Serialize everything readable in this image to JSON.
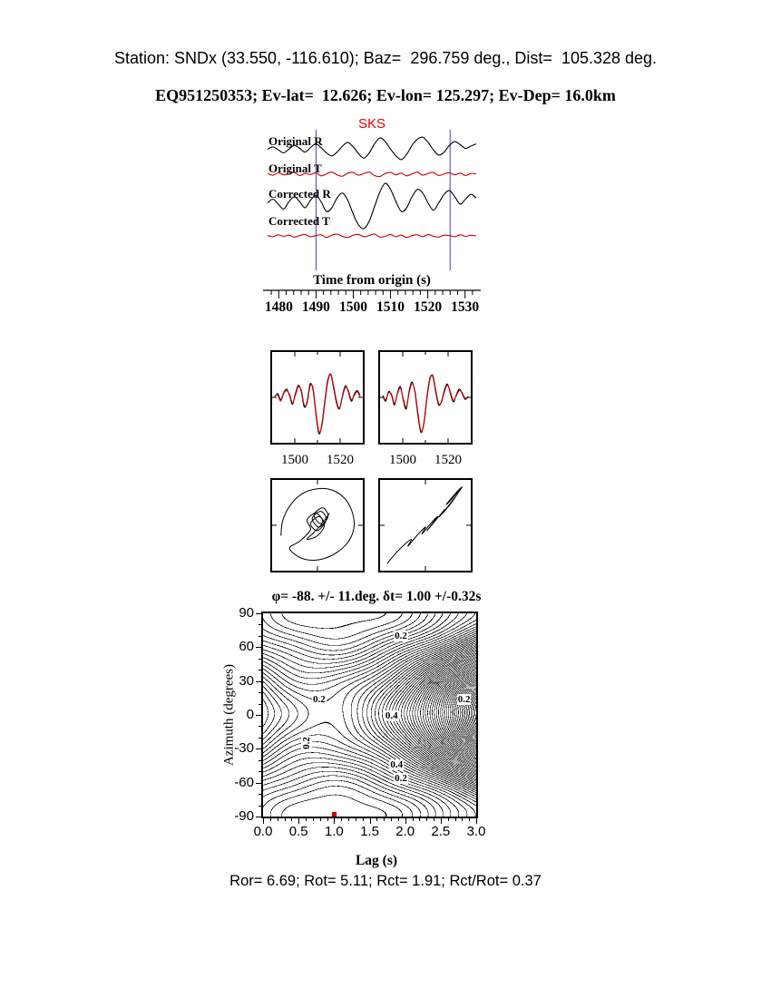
{
  "header": {
    "line1": "Station: SNDx (33.550, -116.610); Baz=  296.759 deg., Dist=  105.328 deg.",
    "line2": "EQ951250353; Ev-lat=  12.626; Ev-lon= 125.297; Ev-Dep= 16.0km"
  },
  "footer": {
    "summary": "Ror= 6.69; Rot= 5.11; Rct= 1.91; Rct/Rot= 0.37"
  },
  "colors": {
    "trace_black": "#000000",
    "trace_red": "#cc0000",
    "window_line": "#4444bb",
    "sks_label": "#ee0000",
    "best_fit_dot": "#cc0000"
  },
  "chart_data": [
    {
      "id": "seismogram",
      "type": "line",
      "phase_label": "SKS",
      "xlabel": "Time from origin (s)",
      "x_range": [
        1477,
        1533
      ],
      "x_ticks": [
        "1480",
        "1490",
        "1500",
        "1510",
        "1520",
        "1530"
      ],
      "window": [
        1490,
        1526
      ],
      "traces": [
        {
          "label": "Original R",
          "color": "#000000",
          "baseline": 0.14,
          "amplitude": 0.11,
          "values": [
            0.1,
            0.25,
            0.05,
            -0.15,
            0.1,
            0.35,
            0.15,
            -0.1,
            0.2,
            0.45,
            0.2,
            -0.15,
            -0.35,
            -0.1,
            0.3,
            0.55,
            0.25,
            -0.2,
            -0.5,
            -0.15,
            0.45,
            0.85,
            0.6,
            0.1,
            -0.35,
            -0.6,
            -0.25,
            0.35,
            0.75,
            0.9,
            0.55,
            0.05,
            -0.3,
            -0.1,
            0.35,
            0.6,
            0.4,
            0.15,
            0.3,
            0.45
          ]
        },
        {
          "label": "Original T",
          "color": "#cc0000",
          "baseline": 0.313,
          "amplitude": 0.05,
          "values": [
            0.1,
            -0.15,
            0.2,
            -0.1,
            0.05,
            0.25,
            -0.2,
            0.1,
            -0.05,
            0.2,
            -0.25,
            0.05,
            0.3,
            -0.1,
            -0.3,
            0.15,
            0.25,
            -0.15,
            0.1,
            0.3,
            -0.2,
            -0.35,
            0.1,
            0.25,
            -0.1,
            0.15,
            -0.25,
            0.05,
            0.3,
            -0.15,
            0.1,
            0.25,
            -0.2,
            0.05,
            0.2,
            -0.1,
            0.15,
            -0.2,
            0.1,
            0.05
          ]
        },
        {
          "label": "Corrected R",
          "color": "#000000",
          "baseline": 0.533,
          "amplitude": 0.18,
          "values": [
            0.05,
            0.2,
            0.0,
            -0.2,
            0.1,
            0.3,
            0.1,
            -0.15,
            0.15,
            0.35,
            0.1,
            -0.3,
            -0.15,
            0.25,
            0.45,
            0.15,
            -0.4,
            -0.85,
            -1.0,
            -0.7,
            -0.1,
            0.5,
            0.85,
            0.6,
            0.1,
            -0.3,
            -0.15,
            0.3,
            0.6,
            0.45,
            0.05,
            -0.25,
            0.05,
            0.4,
            0.55,
            0.3,
            0.0,
            0.2,
            0.4,
            0.25
          ]
        },
        {
          "label": "Corrected T",
          "color": "#cc0000",
          "baseline": 0.767,
          "amplitude": 0.055,
          "values": [
            0.05,
            -0.1,
            0.15,
            -0.05,
            0.1,
            -0.15,
            0.05,
            0.2,
            -0.1,
            0.05,
            0.15,
            -0.2,
            0.1,
            0.25,
            -0.05,
            -0.2,
            0.1,
            0.2,
            -0.1,
            0.05,
            0.25,
            -0.15,
            -0.05,
            0.2,
            -0.1,
            0.1,
            -0.2,
            0.05,
            0.15,
            -0.1,
            0.2,
            -0.05,
            -0.15,
            0.1,
            0.05,
            -0.1,
            0.15,
            -0.05,
            0.1,
            0.0
          ]
        }
      ]
    },
    {
      "id": "waveform_compare_left",
      "type": "line",
      "x_range": [
        1490,
        1530
      ],
      "x_ticks": [
        "1500",
        "1520"
      ],
      "series": [
        {
          "name": "radial",
          "color": "#000000",
          "values": [
            0.02,
            0.1,
            -0.06,
            0.12,
            0.22,
            0.05,
            -0.18,
            0.1,
            0.32,
            0.15,
            -0.25,
            -0.1,
            0.35,
            0.2,
            -0.45,
            -0.95,
            -0.7,
            -0.1,
            0.45,
            0.6,
            0.25,
            -0.15,
            -0.3,
            0.05,
            0.3,
            0.15,
            -0.1,
            0.08,
            0.18,
            0.05
          ]
        },
        {
          "name": "matched",
          "color": "#cc0000",
          "values": [
            0.04,
            0.06,
            -0.1,
            0.1,
            0.18,
            0.08,
            -0.14,
            0.06,
            0.28,
            0.18,
            -0.2,
            -0.14,
            0.3,
            0.24,
            -0.4,
            -0.9,
            -0.74,
            -0.16,
            0.4,
            0.62,
            0.3,
            -0.1,
            -0.28,
            0.02,
            0.26,
            0.18,
            -0.06,
            0.05,
            0.15,
            0.02
          ]
        }
      ]
    },
    {
      "id": "waveform_compare_right",
      "type": "line",
      "x_range": [
        1490,
        1530
      ],
      "x_ticks": [
        "1500",
        "1520"
      ],
      "series": [
        {
          "name": "radial",
          "color": "#000000",
          "values": [
            0.05,
            -0.1,
            0.15,
            0.05,
            -0.2,
            0.12,
            0.28,
            -0.08,
            -0.3,
            0.18,
            0.4,
            0.1,
            -0.5,
            -0.92,
            -0.65,
            0.0,
            0.5,
            0.55,
            0.15,
            -0.2,
            -0.1,
            0.2,
            0.35,
            0.1,
            -0.12,
            0.06,
            0.22,
            0.1,
            -0.05,
            0.02
          ]
        },
        {
          "name": "matched",
          "color": "#cc0000",
          "values": [
            0.02,
            -0.06,
            0.12,
            0.08,
            -0.16,
            0.1,
            0.24,
            -0.04,
            -0.26,
            0.14,
            0.36,
            0.14,
            -0.44,
            -0.88,
            -0.68,
            -0.05,
            0.46,
            0.58,
            0.2,
            -0.16,
            -0.12,
            0.16,
            0.32,
            0.14,
            -0.08,
            0.04,
            0.18,
            0.12,
            -0.02,
            0.0
          ]
        }
      ]
    },
    {
      "id": "particle_motion_left",
      "type": "scatter",
      "points": [
        [
          0.08,
          0.62
        ],
        [
          0.1,
          0.45
        ],
        [
          0.18,
          0.28
        ],
        [
          0.32,
          0.14
        ],
        [
          0.5,
          0.08
        ],
        [
          0.68,
          0.1
        ],
        [
          0.82,
          0.2
        ],
        [
          0.9,
          0.35
        ],
        [
          0.92,
          0.52
        ],
        [
          0.86,
          0.68
        ],
        [
          0.74,
          0.8
        ],
        [
          0.58,
          0.88
        ],
        [
          0.42,
          0.9
        ],
        [
          0.28,
          0.86
        ],
        [
          0.18,
          0.76
        ],
        [
          0.3,
          0.68
        ],
        [
          0.42,
          0.55
        ],
        [
          0.38,
          0.44
        ],
        [
          0.48,
          0.36
        ],
        [
          0.56,
          0.46
        ],
        [
          0.46,
          0.58
        ],
        [
          0.38,
          0.66
        ],
        [
          0.5,
          0.62
        ],
        [
          0.58,
          0.5
        ],
        [
          0.52,
          0.4
        ],
        [
          0.42,
          0.48
        ],
        [
          0.5,
          0.56
        ],
        [
          0.6,
          0.44
        ],
        [
          0.54,
          0.34
        ],
        [
          0.44,
          0.42
        ],
        [
          0.52,
          0.52
        ],
        [
          0.62,
          0.4
        ],
        [
          0.56,
          0.3
        ],
        [
          0.46,
          0.38
        ],
        [
          0.54,
          0.48
        ],
        [
          0.64,
          0.36
        ]
      ]
    },
    {
      "id": "particle_motion_right",
      "type": "scatter",
      "points": [
        [
          0.06,
          0.94
        ],
        [
          0.16,
          0.82
        ],
        [
          0.26,
          0.72
        ],
        [
          0.34,
          0.66
        ],
        [
          0.3,
          0.74
        ],
        [
          0.4,
          0.62
        ],
        [
          0.5,
          0.52
        ],
        [
          0.46,
          0.6
        ],
        [
          0.56,
          0.48
        ],
        [
          0.64,
          0.4
        ],
        [
          0.58,
          0.48
        ],
        [
          0.52,
          0.56
        ],
        [
          0.62,
          0.44
        ],
        [
          0.72,
          0.32
        ],
        [
          0.66,
          0.4
        ],
        [
          0.76,
          0.28
        ],
        [
          0.84,
          0.18
        ],
        [
          0.78,
          0.26
        ],
        [
          0.7,
          0.36
        ],
        [
          0.8,
          0.24
        ],
        [
          0.88,
          0.12
        ],
        [
          0.92,
          0.06
        ],
        [
          0.84,
          0.14
        ],
        [
          0.74,
          0.26
        ],
        [
          0.82,
          0.18
        ],
        [
          0.9,
          0.08
        ]
      ]
    },
    {
      "id": "misfit_contour",
      "type": "heatmap",
      "title": "φ= -88. +/- 11.deg. δt= 1.00 +/-0.32s",
      "xlabel": "Lag (s)",
      "ylabel": "Azimuth (degrees)",
      "x_range": [
        0,
        3
      ],
      "y_range": [
        -90,
        90
      ],
      "x_ticks": [
        "0.0",
        "0.5",
        "1.0",
        "1.5",
        "2.0",
        "2.5",
        "3.0"
      ],
      "y_ticks": [
        "90",
        "60",
        "30",
        "0",
        "-30",
        "-60",
        "-90"
      ],
      "best_fit": {
        "lag": 1.0,
        "azimuth": -88
      },
      "model": {
        "phi0": -88,
        "dt0": 1.0,
        "level_step": 0.035
      },
      "contour_labels": [
        {
          "text": "0.2",
          "lag": 1.94,
          "az": 70
        },
        {
          "text": "0.2",
          "lag": 0.79,
          "az": 14
        },
        {
          "text": "0.2",
          "lag": 2.83,
          "az": 14
        },
        {
          "text": "0.4",
          "lag": 1.81,
          "az": -1
        },
        {
          "text": "0.2",
          "lag": 0.61,
          "az": -25,
          "rotated": true
        },
        {
          "text": "0.4",
          "lag": 1.88,
          "az": -44
        },
        {
          "text": "0.2",
          "lag": 1.94,
          "az": -56
        }
      ]
    }
  ]
}
